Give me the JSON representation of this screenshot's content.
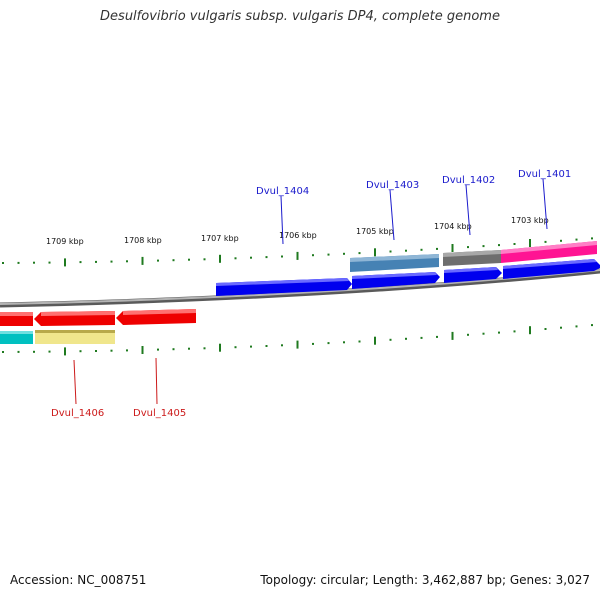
{
  "title": "Desulfovibrio vulgaris subsp. vulgaris DP4, complete genome",
  "footer": {
    "accession": "Accession: NC_008751",
    "summary": "Topology: circular; Length: 3,462,887 bp; Genes: 3,027"
  },
  "scale_labels": [
    {
      "text": "1709 kbp"
    },
    {
      "text": "1708 kbp"
    },
    {
      "text": "1707 kbp"
    },
    {
      "text": "1706 kbp"
    },
    {
      "text": "1705 kbp"
    },
    {
      "text": "1704 kbp"
    },
    {
      "text": "1703 kbp"
    }
  ],
  "genes": [
    {
      "id": "Dvul_1406",
      "strand": "reverse"
    },
    {
      "id": "Dvul_1405",
      "strand": "reverse"
    },
    {
      "id": "Dvul_1404",
      "strand": "forward"
    },
    {
      "id": "Dvul_1403",
      "strand": "forward"
    },
    {
      "id": "Dvul_1402",
      "strand": "forward"
    },
    {
      "id": "Dvul_1401",
      "strand": "forward"
    }
  ],
  "colors": {
    "forward_label": "#1a1acc",
    "reverse_label": "#cc1a1a",
    "forward_gene": "#0000ee",
    "reverse_gene": "#ee0000",
    "backbone": "#8c8c8c",
    "ticks": "#1f7a1f",
    "steelblue_feature": "#4682b4",
    "gray_feature": "#6e6e6e",
    "pink_feature": "#ff1493",
    "cyan_feature": "#00c0c0",
    "khaki_feature": "#f0e68c"
  }
}
